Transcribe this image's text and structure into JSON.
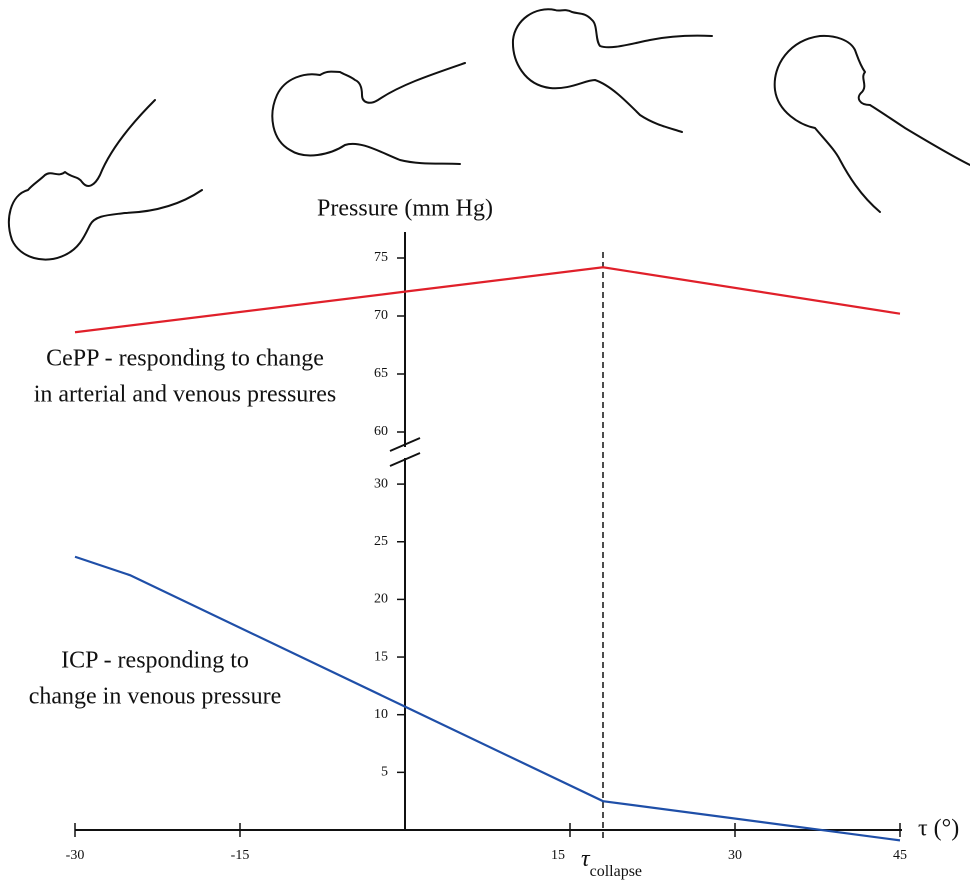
{
  "chart_data": {
    "type": "line",
    "y_axis_label": "Pressure (mm Hg)",
    "x_axis_label": "τ (°)",
    "xlim": [
      -30,
      45
    ],
    "xticks": [
      -30,
      -15,
      15,
      30,
      45
    ],
    "ylim": [
      0,
      77
    ],
    "yticks": [
      5,
      10,
      15,
      20,
      25,
      30,
      60,
      65,
      70,
      75
    ],
    "axis_break": [
      30,
      60
    ],
    "marker": {
      "x": 18,
      "symbol": "τ",
      "subscript": "collapse"
    },
    "series": [
      {
        "label": [
          "CePP - responding to change",
          "in arterial and venous pressures"
        ],
        "color": "#e0202a",
        "x": [
          -30,
          0,
          18,
          45
        ],
        "values": [
          68.6,
          72.1,
          74.2,
          70.2
        ]
      },
      {
        "label": [
          "ICP - responding to",
          "change in venous pressure"
        ],
        "color": "#1f4fa8",
        "x": [
          -30,
          -25,
          0,
          18,
          45
        ],
        "values": [
          23.7,
          22.1,
          10.7,
          2.5,
          -0.9
        ]
      }
    ]
  }
}
